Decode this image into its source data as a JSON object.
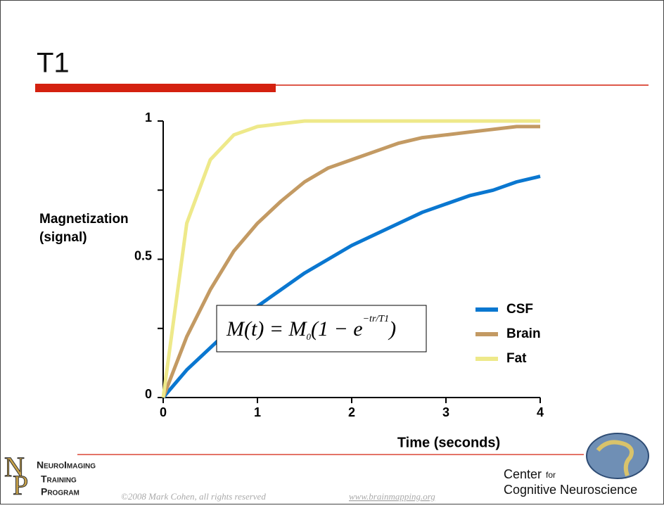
{
  "title": "T1",
  "chart_data": {
    "type": "line",
    "ylabel": [
      "Magnetization",
      "(signal)"
    ],
    "xlabel": "Time (seconds)",
    "x": [
      0,
      0.25,
      0.5,
      0.75,
      1,
      1.25,
      1.5,
      1.75,
      2,
      2.25,
      2.5,
      2.75,
      3,
      3.25,
      3.5,
      3.75,
      4
    ],
    "series": [
      {
        "name": "CSF",
        "color": "#0a77d0",
        "values": [
          0,
          0.1,
          0.18,
          0.26,
          0.33,
          0.39,
          0.45,
          0.5,
          0.55,
          0.59,
          0.63,
          0.67,
          0.7,
          0.73,
          0.75,
          0.78,
          0.8
        ]
      },
      {
        "name": "Brain",
        "color": "#c39a63",
        "values": [
          0,
          0.22,
          0.39,
          0.53,
          0.63,
          0.71,
          0.78,
          0.83,
          0.86,
          0.89,
          0.92,
          0.94,
          0.95,
          0.96,
          0.97,
          0.98,
          0.98
        ]
      },
      {
        "name": "Fat",
        "color": "#eee98a",
        "values": [
          0,
          0.63,
          0.86,
          0.95,
          0.98,
          0.99,
          1,
          1,
          1,
          1,
          1,
          1,
          1,
          1,
          1,
          1,
          1
        ]
      }
    ],
    "xlim": [
      0,
      4
    ],
    "xticks": [
      0,
      1,
      2,
      3,
      4
    ],
    "ylim": [
      0,
      1
    ],
    "yticks": [
      0,
      0.5,
      1
    ],
    "yminorticks": [
      0.25,
      0.75
    ],
    "legend": "right",
    "formula": {
      "lhs": "M(t) = M",
      "sub": "0",
      "mid": "(1 − e",
      "sup": "−tr/T1",
      "end": ")"
    }
  },
  "logo": [
    "NeuroImaging",
    "Training",
    "Program"
  ],
  "footer": {
    "copyright": "©2008 Mark Cohen, all rights reserved",
    "url": "www.brainmapping.org",
    "center": "Center",
    "for": "for",
    "cns": "Cognitive Neuroscience"
  }
}
